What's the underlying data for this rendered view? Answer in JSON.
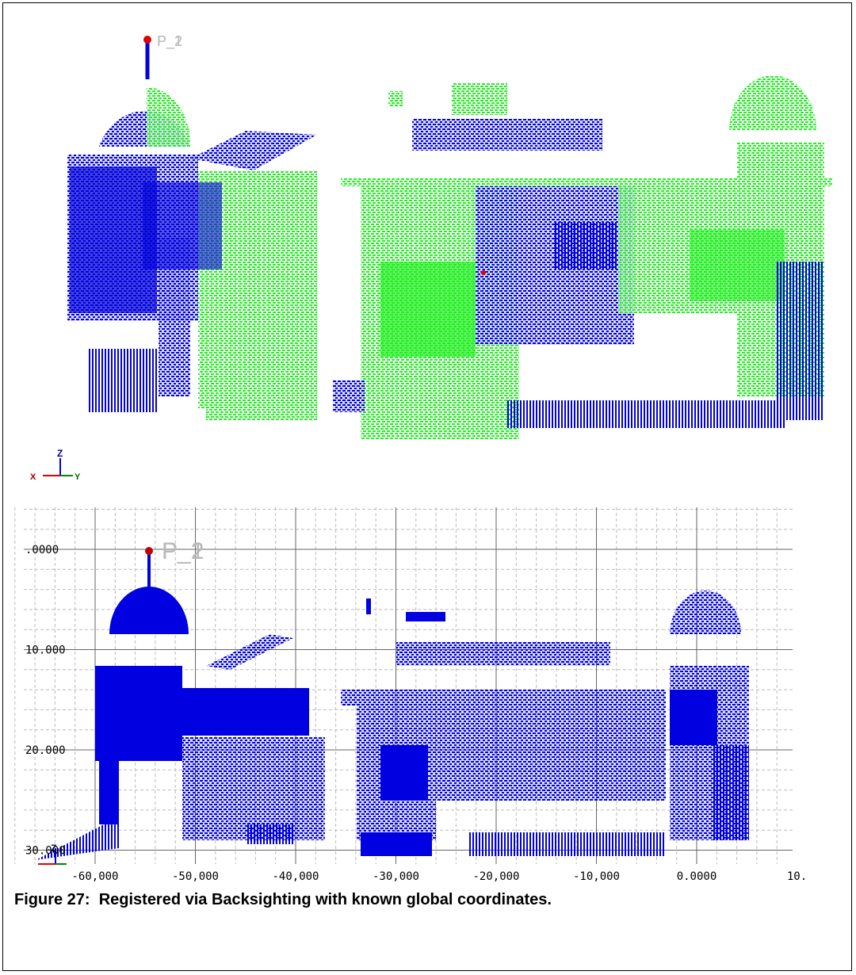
{
  "top_view": {
    "point_labels": [
      "P_1",
      "P_2"
    ],
    "axes": {
      "z": "Z",
      "x": "X",
      "y": "Y"
    }
  },
  "bottom_view": {
    "point_labels": [
      "P_1",
      "P_2"
    ],
    "y_ticks": [
      ".0000",
      "10.000",
      "20.000",
      "30.000"
    ],
    "x_ticks": [
      "-60,000",
      "-50,000",
      "-40,000",
      "-30,000",
      "-20,000",
      "-10,000",
      "0.0000",
      "10."
    ],
    "axes": {
      "z": "Z"
    }
  },
  "caption": "Figure 27:  Registered via Backsighting with known global coordinates."
}
